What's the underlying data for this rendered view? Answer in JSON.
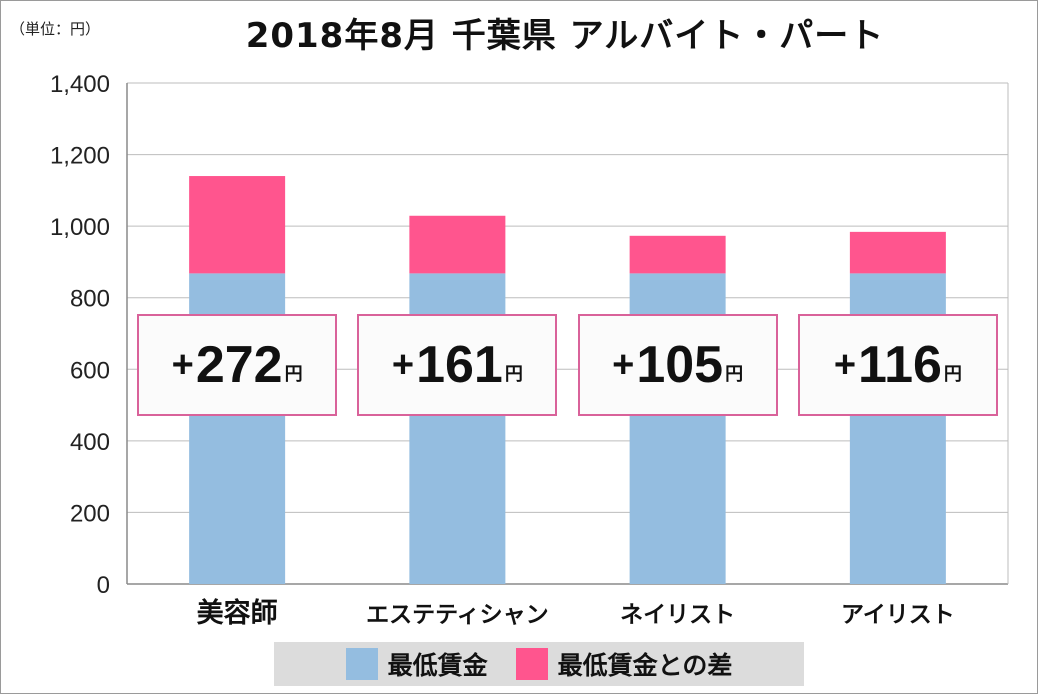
{
  "unit_label": "（単位：円）",
  "title": "2018年8月 千葉県 アルバイト・パート",
  "colors": {
    "min_wage": "#94bde0",
    "difference": "#ff558e",
    "grid": "#bdbdbd",
    "box_border": "#d9629a"
  },
  "diff_unit": "円",
  "chart_data": {
    "type": "bar",
    "stacked": true,
    "categories": [
      "美容師",
      "エステティシャン",
      "ネイリスト",
      "アイリスト"
    ],
    "series": [
      {
        "name": "最低賃金",
        "values": [
          868,
          868,
          868,
          868
        ]
      },
      {
        "name": "最低賃金との差",
        "values": [
          272,
          161,
          105,
          116
        ]
      }
    ],
    "difference_labels": [
      "272",
      "161",
      "105",
      "116"
    ],
    "difference_sign": "+",
    "yticks": [
      "0",
      "200",
      "400",
      "600",
      "800",
      "1,000",
      "1,200",
      "1,400"
    ],
    "ylim": [
      0,
      1400
    ],
    "grid": true,
    "legend_position": "bottom"
  }
}
